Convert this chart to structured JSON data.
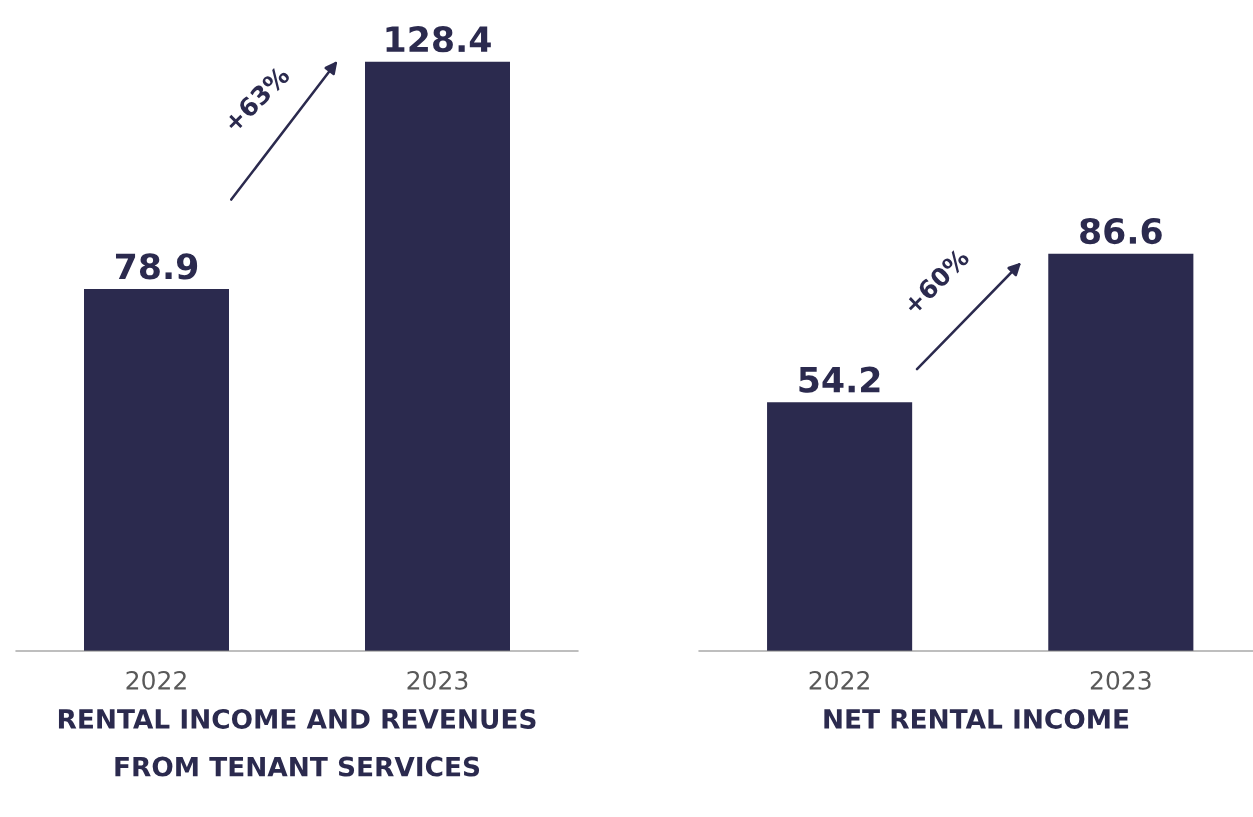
{
  "chart_data": [
    {
      "type": "bar",
      "xlabel": "RENTAL INCOME AND REVENUES\nFROM TENANT SERVICES",
      "categories": [
        "2022",
        "2023"
      ],
      "values": [
        78.9,
        128.4
      ],
      "color": "#2b2a4e",
      "data_labels": true,
      "tick_labels": "x",
      "grid": false,
      "annotations": [
        "+63%"
      ]
    },
    {
      "type": "bar",
      "xlabel": "NET RENTAL INCOME",
      "categories": [
        "2022",
        "2023"
      ],
      "values": [
        54.2,
        86.6
      ],
      "color": "#2b2a4e",
      "data_labels": true,
      "tick_labels": "x",
      "grid": false,
      "annotations": [
        "+60%"
      ]
    }
  ]
}
